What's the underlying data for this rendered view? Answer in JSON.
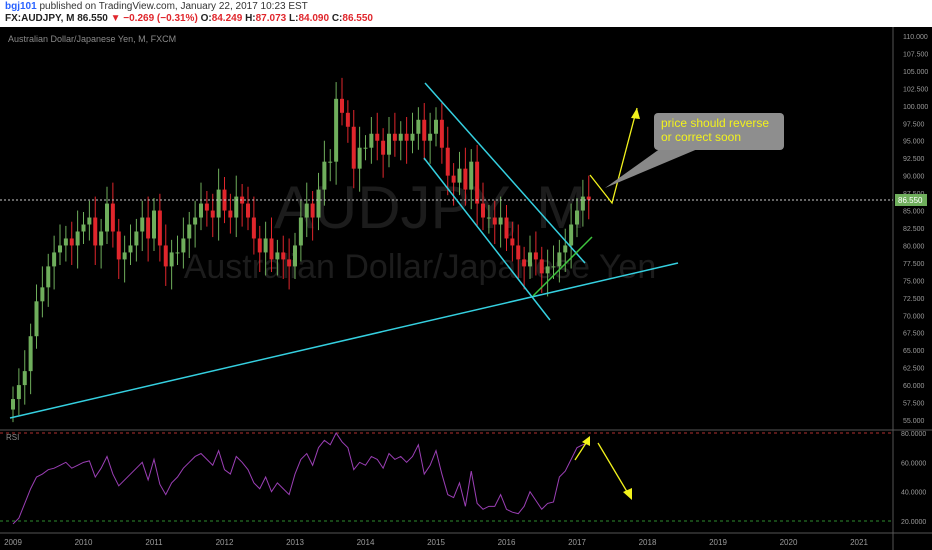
{
  "header": {
    "user": "bgj101",
    "published_text": "published on TradingView.com, January 22, 2017 10:23 EST",
    "symbol": "FX:AUDJPY, M",
    "last": "86.550",
    "change": "▼ −0.269 (−0.31%)",
    "o_label": "O:",
    "o_val": "84.249",
    "h_label": "H:",
    "h_val": "87.073",
    "l_label": "L:",
    "l_val": "84.090",
    "c_label": "C:",
    "c_val": "86.550"
  },
  "chart_title": "Australian Dollar/Japanese Yen, M, FXCM",
  "watermark": {
    "ticker": "AUDJPY, M",
    "name": "Australian Dollar/Japanese Yen"
  },
  "annotation": "price should reverse\nor correct soon",
  "price_badge": "86.550",
  "rsi_label": "RSI",
  "colors": {
    "up": "#6fae5c",
    "down": "#e0262c",
    "trend": "#35d0e0",
    "annot": "#f2f21c",
    "rsi": "#9b3fb5",
    "green_line": "#3ec43e"
  },
  "chart_data": [
    {
      "type": "candlestick",
      "title": "Australian Dollar/Japanese Yen, M, FXCM",
      "x_ticks": [
        "2009",
        "2010",
        "2011",
        "2012",
        "2013",
        "2014",
        "2015",
        "2016",
        "2017",
        "2018",
        "2019",
        "2020",
        "2021"
      ],
      "y_ticks": [
        "110.000",
        "107.500",
        "105.000",
        "102.500",
        "100.000",
        "97.500",
        "95.000",
        "92.500",
        "90.000",
        "87.500",
        "85.000",
        "82.500",
        "80.000",
        "77.500",
        "75.000",
        "72.500",
        "70.000",
        "67.500",
        "65.000",
        "62.500",
        "60.000",
        "57.500",
        "55.000"
      ],
      "ylim": [
        54.5,
        111
      ],
      "close_approx": [
        58,
        60,
        62,
        67,
        72,
        74,
        77,
        79,
        80,
        81,
        80,
        82,
        83,
        84,
        80,
        82,
        86,
        82,
        78,
        79,
        80,
        82,
        84,
        81,
        85,
        80,
        77,
        79,
        79,
        81,
        83,
        84,
        86,
        85,
        84,
        88,
        85,
        84,
        87,
        86,
        84,
        81,
        79,
        81,
        78,
        79,
        78,
        77,
        80,
        84,
        86,
        84,
        88,
        92,
        92,
        101,
        99,
        97,
        91,
        94,
        94,
        96,
        95,
        93,
        96,
        95,
        96,
        95,
        96,
        98,
        95,
        96,
        98,
        94,
        90,
        89,
        91,
        88,
        92,
        86,
        84,
        84,
        83,
        84,
        81,
        80,
        78,
        77,
        79,
        78,
        76,
        77,
        77,
        79,
        80,
        83,
        85,
        87,
        86.55
      ],
      "last": 86.55,
      "trendlines": [
        {
          "name": "long-term support",
          "color": "#35d0e0"
        },
        {
          "name": "channel upper",
          "color": "#35d0e0"
        },
        {
          "name": "channel lower",
          "color": "#35d0e0"
        }
      ]
    },
    {
      "type": "line",
      "title": "RSI",
      "y_ticks": [
        "80.0000",
        "60.0000",
        "40.0000",
        "20.0000"
      ],
      "ylim": [
        15,
        82
      ],
      "levels": [
        80,
        20
      ],
      "values_approx": [
        18,
        22,
        32,
        42,
        50,
        52,
        55,
        56,
        58,
        60,
        56,
        58,
        60,
        61,
        50,
        56,
        64,
        52,
        44,
        48,
        52,
        56,
        60,
        48,
        62,
        45,
        38,
        46,
        50,
        56,
        60,
        64,
        66,
        62,
        58,
        68,
        55,
        52,
        64,
        60,
        55,
        46,
        42,
        50,
        40,
        46,
        42,
        38,
        52,
        62,
        66,
        58,
        70,
        75,
        72,
        80,
        74,
        70,
        55,
        60,
        58,
        64,
        62,
        56,
        66,
        62,
        64,
        60,
        64,
        72,
        52,
        58,
        68,
        52,
        38,
        36,
        46,
        30,
        54,
        32,
        28,
        30,
        30,
        38,
        28,
        26,
        25,
        30,
        40,
        34,
        28,
        32,
        33,
        50,
        54,
        62,
        70,
        72,
        73
      ]
    }
  ]
}
